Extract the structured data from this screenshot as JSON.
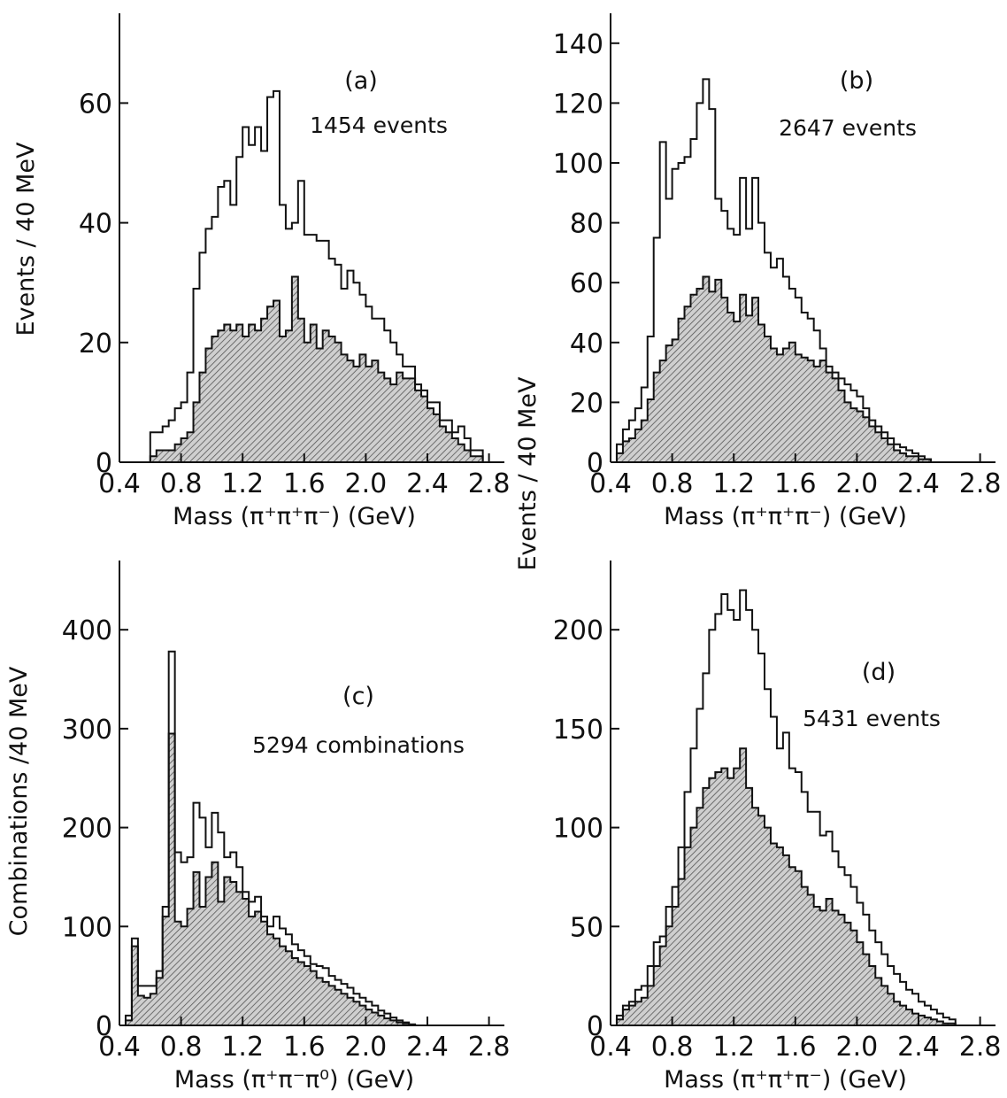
{
  "colors": {
    "ink": "#111111",
    "background": "#ffffff",
    "hatch": "#6a6a6a"
  },
  "shared_ylabel": "Events / 40 MeV",
  "chart_data": [
    {
      "id": "a",
      "type": "histogram",
      "panel_label": "(a)",
      "annotation": "1454 events",
      "xlabel": "Mass (π⁺π⁺π⁻) (GeV)",
      "ylabel": "Events / 40 MeV",
      "xlim": [
        0.4,
        2.9
      ],
      "ylim": [
        0,
        75
      ],
      "xticks": [
        "0.4",
        "0.8",
        "1.2",
        "1.6",
        "2.0",
        "2.4",
        "2.8"
      ],
      "yticks": [
        "0",
        "20",
        "40",
        "60"
      ],
      "bin_start": 0.6,
      "bin_width": 0.04,
      "series": [
        {
          "name": "",
          "style": "open",
          "values": [
            5,
            5,
            6,
            7,
            9,
            10,
            15,
            29,
            35,
            39,
            41,
            46,
            47,
            43,
            51,
            56,
            53,
            56,
            52,
            61,
            62,
            43,
            39,
            40,
            47,
            38,
            38,
            37,
            37,
            34,
            33,
            29,
            32,
            30,
            28,
            26,
            24,
            24,
            22,
            20,
            18,
            16,
            16,
            13,
            12,
            10,
            10,
            7,
            7,
            5,
            6,
            4,
            2,
            2
          ]
        },
        {
          "name": "",
          "style": "hatched",
          "values": [
            1,
            2,
            2,
            2,
            3,
            4,
            5,
            10,
            15,
            19,
            21,
            22,
            23,
            22,
            23,
            21,
            23,
            22,
            24,
            26,
            27,
            21,
            22,
            31,
            24,
            20,
            23,
            19,
            22,
            21,
            20,
            18,
            17,
            16,
            18,
            16,
            17,
            15,
            14,
            13,
            15,
            14,
            14,
            12,
            11,
            9,
            8,
            6,
            5,
            4,
            3,
            2,
            1,
            1
          ]
        }
      ]
    },
    {
      "id": "b",
      "type": "histogram",
      "panel_label": "(b)",
      "annotation": "2647 events",
      "xlabel": "Mass (π⁺π⁺π⁻)  (GeV)",
      "ylabel": "",
      "xlim": [
        0.4,
        2.9
      ],
      "ylim": [
        0,
        150
      ],
      "xticks": [
        "0.4",
        "0.8",
        "1.2",
        "1.6",
        "2.0",
        "2.4",
        "2.8"
      ],
      "yticks": [
        "0",
        "20",
        "40",
        "60",
        "80",
        "100",
        "120",
        "140"
      ],
      "bin_start": 0.44,
      "bin_width": 0.04,
      "series": [
        {
          "name": "",
          "style": "open",
          "values": [
            6,
            11,
            14,
            18,
            25,
            42,
            75,
            107,
            88,
            98,
            100,
            102,
            108,
            120,
            128,
            118,
            88,
            84,
            78,
            76,
            95,
            78,
            95,
            80,
            70,
            65,
            68,
            62,
            58,
            55,
            50,
            48,
            44,
            38,
            32,
            30,
            28,
            26,
            24,
            22,
            18,
            14,
            12,
            10,
            8,
            6,
            5,
            4,
            3,
            2,
            1
          ]
        },
        {
          "name": "",
          "style": "hatched",
          "values": [
            3,
            7,
            8,
            11,
            14,
            21,
            30,
            34,
            39,
            41,
            48,
            52,
            56,
            58,
            62,
            57,
            61,
            55,
            50,
            47,
            56,
            49,
            55,
            46,
            42,
            38,
            36,
            38,
            40,
            36,
            35,
            34,
            32,
            34,
            30,
            28,
            24,
            20,
            18,
            17,
            15,
            12,
            10,
            8,
            6,
            4,
            3,
            2,
            2,
            1,
            1
          ]
        }
      ]
    },
    {
      "id": "c",
      "type": "histogram",
      "panel_label": "(c)",
      "annotation": "5294 combinations",
      "xlabel": "Mass (π⁺π⁻π⁰)  (GeV)",
      "ylabel": "Combinations /40 MeV",
      "xlim": [
        0.4,
        2.9
      ],
      "ylim": [
        0,
        470
      ],
      "xticks": [
        "0.4",
        "0.8",
        "1.2",
        "1.6",
        "2.0",
        "2.4",
        "2.8"
      ],
      "yticks": [
        "0",
        "100",
        "200",
        "300",
        "400"
      ],
      "bin_start": 0.44,
      "bin_width": 0.04,
      "series": [
        {
          "name": "",
          "style": "open",
          "values": [
            10,
            88,
            40,
            40,
            40,
            55,
            120,
            378,
            175,
            165,
            170,
            225,
            210,
            180,
            215,
            195,
            170,
            175,
            160,
            135,
            125,
            130,
            110,
            100,
            110,
            98,
            92,
            82,
            76,
            70,
            62,
            60,
            58,
            50,
            46,
            42,
            38,
            32,
            28,
            24,
            20,
            15,
            12,
            8,
            5,
            3,
            1
          ]
        },
        {
          "name": "",
          "style": "hatched",
          "values": [
            5,
            80,
            30,
            28,
            32,
            48,
            110,
            295,
            105,
            100,
            118,
            155,
            120,
            150,
            165,
            125,
            150,
            145,
            135,
            128,
            110,
            115,
            105,
            92,
            88,
            80,
            75,
            68,
            64,
            60,
            55,
            48,
            44,
            40,
            36,
            32,
            28,
            24,
            20,
            16,
            13,
            10,
            7,
            5,
            3,
            2,
            1
          ]
        }
      ]
    },
    {
      "id": "d",
      "type": "histogram",
      "panel_label": "(d)",
      "annotation": "5431 events",
      "xlabel": "Mass (π⁺π⁺π⁻)  (GeV)",
      "ylabel": "",
      "xlim": [
        0.4,
        2.9
      ],
      "ylim": [
        0,
        235
      ],
      "xticks": [
        "0.4",
        "0.8",
        "1.2",
        "1.6",
        "2.0",
        "2.4",
        "2.8"
      ],
      "yticks": [
        "0",
        "50",
        "100",
        "150",
        "200"
      ],
      "bin_start": 0.44,
      "bin_width": 0.04,
      "series": [
        {
          "name": "",
          "style": "open",
          "values": [
            5,
            10,
            12,
            18,
            20,
            30,
            42,
            45,
            60,
            70,
            90,
            118,
            140,
            160,
            178,
            200,
            208,
            218,
            210,
            205,
            220,
            210,
            200,
            188,
            170,
            156,
            140,
            148,
            130,
            128,
            118,
            108,
            108,
            96,
            98,
            88,
            80,
            76,
            70,
            62,
            56,
            48,
            42,
            36,
            30,
            26,
            22,
            18,
            16,
            12,
            10,
            8,
            6,
            4,
            3
          ]
        },
        {
          "name": "",
          "style": "hatched",
          "values": [
            3,
            8,
            10,
            12,
            14,
            20,
            30,
            40,
            50,
            60,
            74,
            90,
            100,
            110,
            120,
            125,
            128,
            130,
            125,
            130,
            140,
            120,
            110,
            106,
            100,
            92,
            90,
            86,
            80,
            78,
            70,
            66,
            60,
            58,
            64,
            58,
            56,
            52,
            48,
            42,
            36,
            30,
            24,
            20,
            16,
            12,
            10,
            8,
            6,
            5,
            4,
            3,
            2,
            1,
            1
          ]
        }
      ]
    }
  ]
}
